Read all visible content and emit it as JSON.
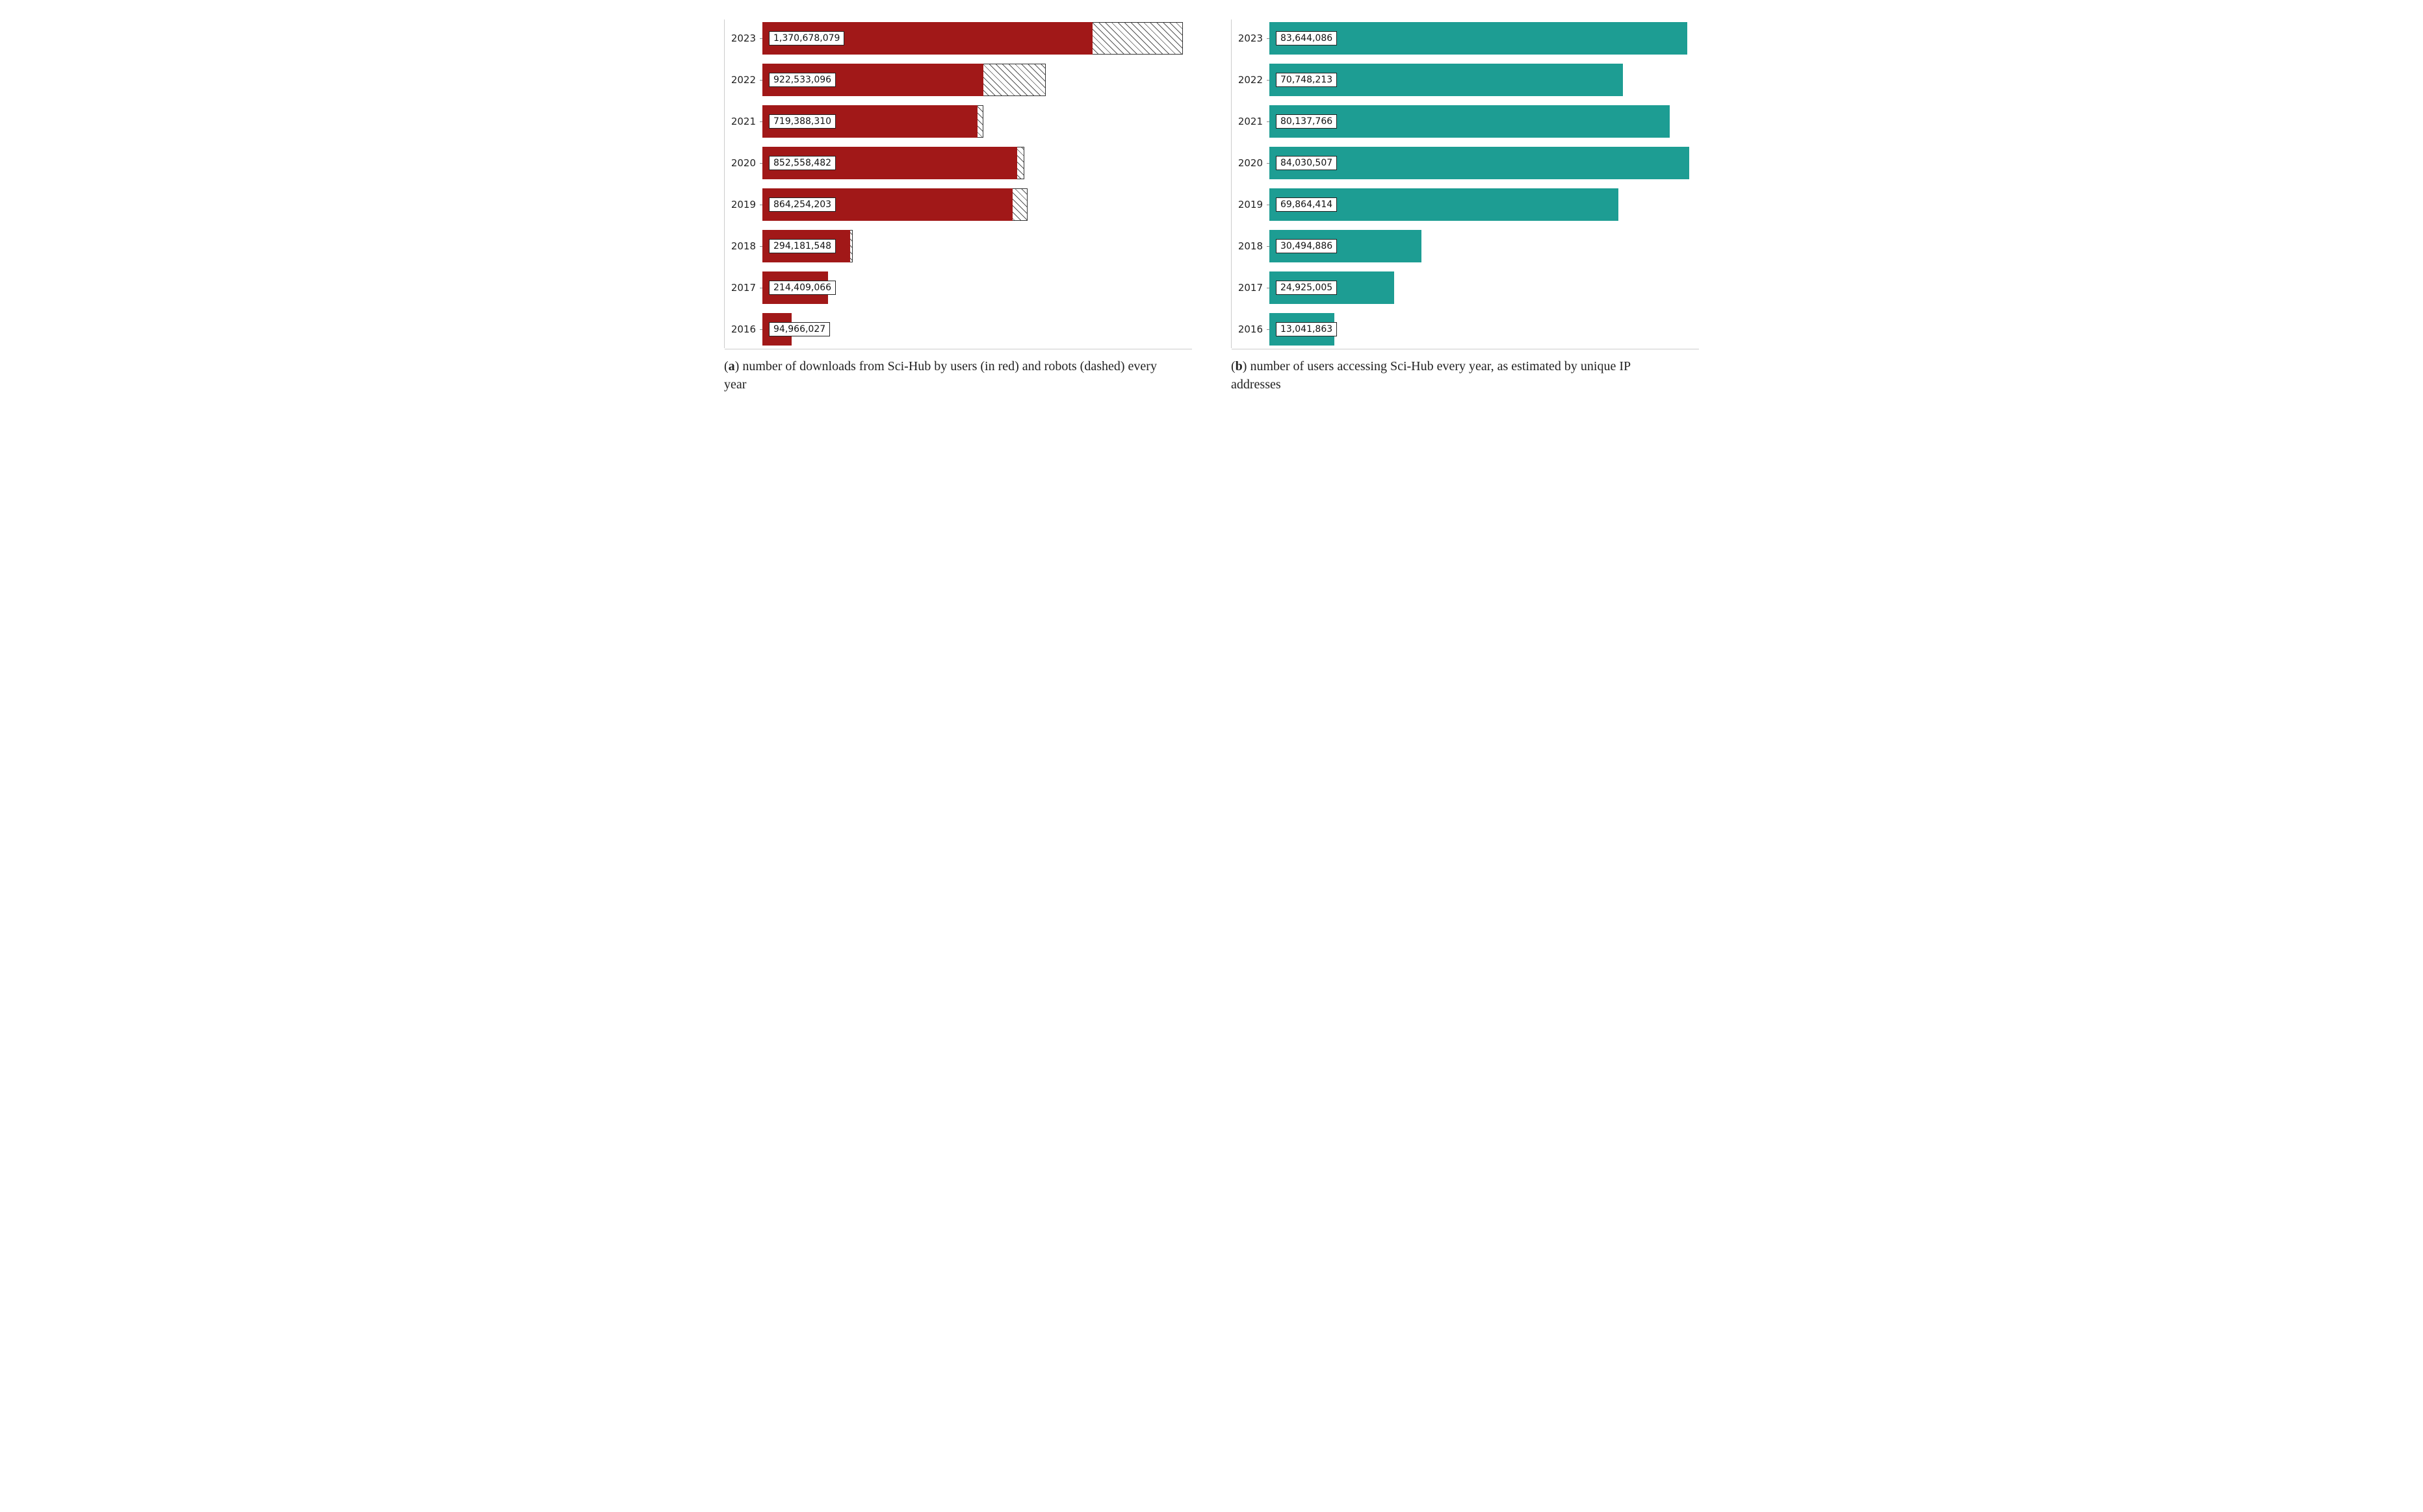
{
  "layout": {
    "panels": 2,
    "orientation": "side-by-side",
    "background_color": "#ffffff"
  },
  "chart_a": {
    "type": "bar",
    "orientation": "horizontal",
    "stacked": true,
    "categories": [
      "2023",
      "2022",
      "2021",
      "2020",
      "2019",
      "2018",
      "2017",
      "2016"
    ],
    "user_values": [
      1076000000,
      720000000,
      700000000,
      830000000,
      815000000,
      285000000,
      214409066,
      94966027
    ],
    "total_values": [
      1370678079,
      922533096,
      719388310,
      852558482,
      864254203,
      294181548,
      214409066,
      94966027
    ],
    "value_labels": [
      "1,370,678,079",
      "922,533,096",
      "719,388,310",
      "852,558,482",
      "864,254,203",
      "294,181,548",
      "214,409,066",
      "94,966,027"
    ],
    "xlim": [
      0,
      1400000000
    ],
    "series": {
      "users": {
        "color": "#a11818",
        "label": "users"
      },
      "robots": {
        "pattern": "diagonal-hatch",
        "border_color": "#333333",
        "label": "robots"
      }
    },
    "ylabel_fontsize": 15,
    "value_label_fontsize": 14,
    "value_label_bg": "#ffffff",
    "value_label_border": "#222222",
    "axis_color": "#cccccc",
    "caption_prefix": "(",
    "caption_letter": "a",
    "caption_suffix": ") number of downloads from Sci-Hub by users (in red) and robots (dashed) every year"
  },
  "chart_b": {
    "type": "bar",
    "orientation": "horizontal",
    "categories": [
      "2023",
      "2022",
      "2021",
      "2020",
      "2019",
      "2018",
      "2017",
      "2016"
    ],
    "values": [
      83644086,
      70748213,
      80137766,
      84030507,
      69864414,
      30494886,
      24925005,
      13041863
    ],
    "value_labels": [
      "83,644,086",
      "70,748,213",
      "80,137,766",
      "84,030,507",
      "69,864,414",
      "30,494,886",
      "24,925,005",
      "13,041,863"
    ],
    "xlim": [
      0,
      86000000
    ],
    "bar_color": "#1d9d93",
    "ylabel_fontsize": 15,
    "value_label_fontsize": 14,
    "value_label_bg": "#ffffff",
    "value_label_border": "#222222",
    "axis_color": "#cccccc",
    "caption_prefix": "(",
    "caption_letter": "b",
    "caption_suffix": ") number of users accessing Sci-Hub every year, as estimated by unique IP addresses"
  },
  "typography": {
    "caption_font": "serif",
    "caption_fontsize": 20,
    "label_font": "sans-serif"
  }
}
